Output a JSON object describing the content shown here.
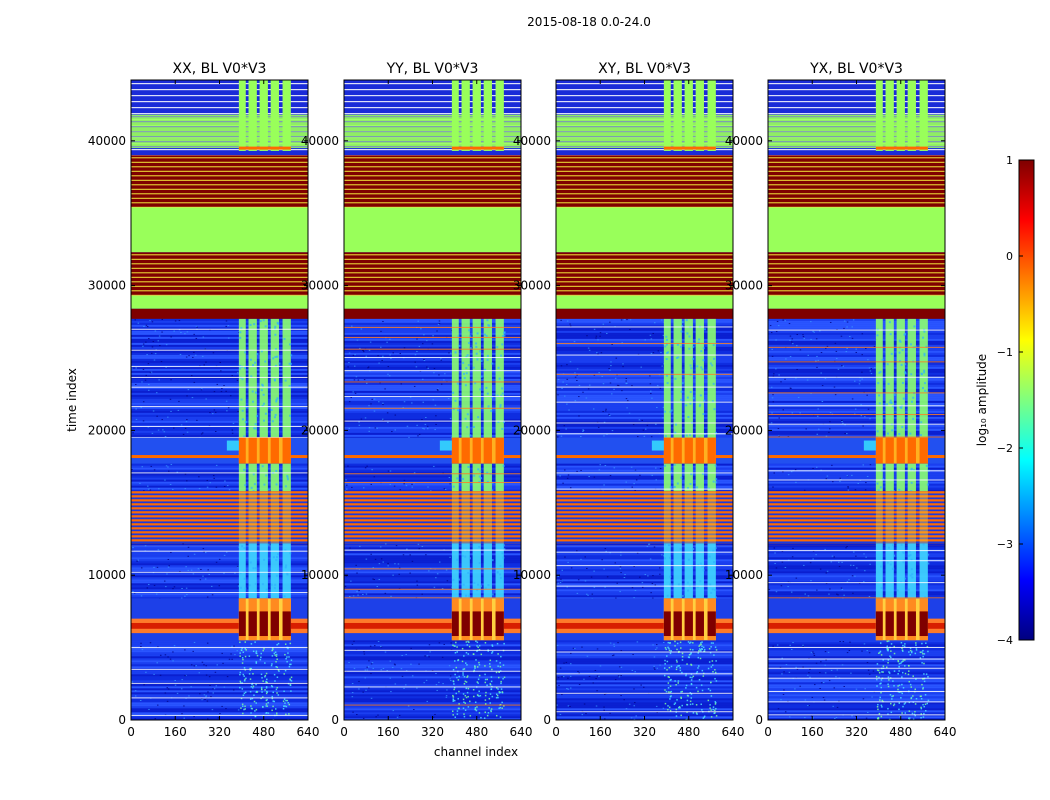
{
  "figure": {
    "suptitle": "2015-08-18 0.0-24.0",
    "xlabel": "channel index",
    "ylabel": "time index"
  },
  "colors": {
    "jet": [
      "#00007f",
      "#0000ff",
      "#007fff",
      "#00ffff",
      "#7fff7f",
      "#ffff00",
      "#ff7f00",
      "#ff0000",
      "#7f0000"
    ],
    "band_green": "#99ff5a",
    "band_darkred": "#7f0000",
    "band_orange": "#ff6a00",
    "band_yellow": "#ffff40",
    "background_blue": "#1238e8"
  },
  "chart_data": {
    "type": "heatmap",
    "x_range": [
      0,
      640
    ],
    "y_range": [
      0,
      44200
    ],
    "x_ticks": [
      0,
      160,
      320,
      480,
      640
    ],
    "y_ticks": [
      0,
      10000,
      20000,
      30000,
      40000
    ],
    "panels": [
      {
        "title": "XX, BL V0*V3",
        "show_ytick_labels": true
      },
      {
        "title": "YY, BL V0*V3",
        "show_ytick_labels": true
      },
      {
        "title": "XY, BL V0*V3",
        "show_ytick_labels": true
      },
      {
        "title": "YX, BL V0*V3",
        "show_ytick_labels": true
      }
    ],
    "bands": [
      {
        "y0": 39000,
        "y1": 44200,
        "kind": "mixed_green_top"
      },
      {
        "y0": 35400,
        "y1": 39000,
        "kind": "darkred_striped"
      },
      {
        "y0": 32300,
        "y1": 35400,
        "kind": "green"
      },
      {
        "y0": 29300,
        "y1": 32300,
        "kind": "darkred_striped"
      },
      {
        "y0": 28400,
        "y1": 29300,
        "kind": "green"
      },
      {
        "y0": 27700,
        "y1": 28400,
        "kind": "darkred"
      },
      {
        "y0": 19500,
        "y1": 27700,
        "kind": "noise_high_block"
      },
      {
        "y0": 17700,
        "y1": 19500,
        "kind": "orange_block"
      },
      {
        "y0": 15800,
        "y1": 17700,
        "kind": "noise_high_block"
      },
      {
        "y0": 12200,
        "y1": 15800,
        "kind": "orange_striped"
      },
      {
        "y0": 8400,
        "y1": 12200,
        "kind": "noise_cyan_block"
      },
      {
        "y0": 5500,
        "y1": 8400,
        "kind": "red_block"
      },
      {
        "y0": 0,
        "y1": 5500,
        "kind": "noise_low"
      }
    ],
    "high_channel_columns": [
      [
        390,
        415
      ],
      [
        425,
        455
      ],
      [
        465,
        495
      ],
      [
        505,
        535
      ],
      [
        548,
        578
      ]
    ],
    "colorbar": {
      "label": "log₁₀ amplitude",
      "min": -4,
      "max": 1,
      "ticks": [
        {
          "value": 1,
          "label": "1"
        },
        {
          "value": 0,
          "label": "0"
        },
        {
          "value": -1,
          "label": "−1"
        },
        {
          "value": -2,
          "label": "−2"
        },
        {
          "value": -3,
          "label": "−3"
        },
        {
          "value": -4,
          "label": "−4"
        }
      ]
    }
  }
}
